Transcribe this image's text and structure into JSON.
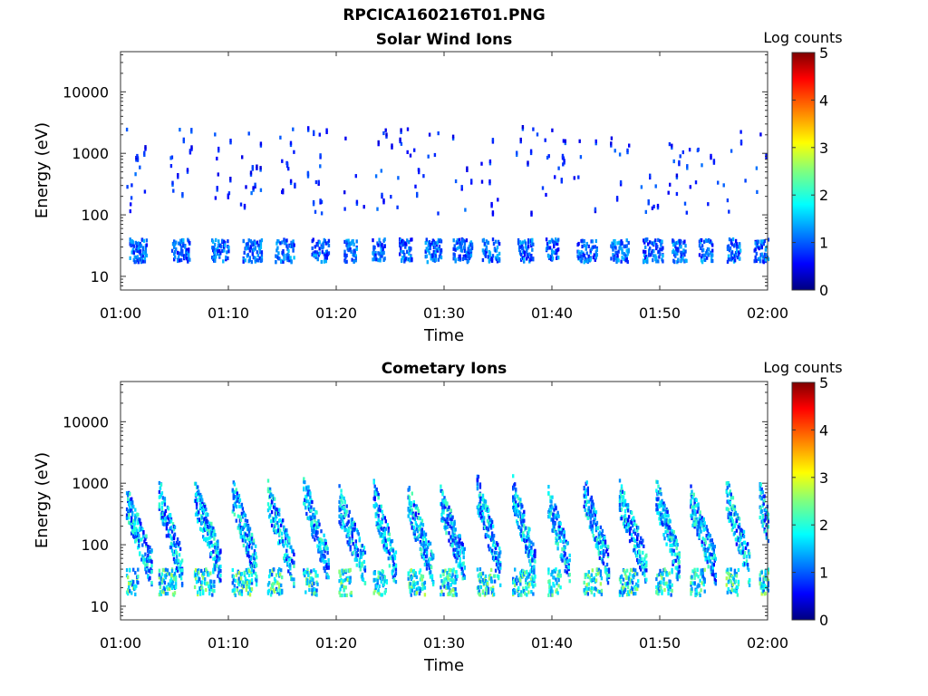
{
  "figure": {
    "title": "RPCICA160216T01.PNG"
  },
  "chart_data": [
    {
      "type": "heatmap",
      "title": "Solar Wind Ions",
      "xlabel": "Time",
      "ylabel": "Energy (eV)",
      "x_ticks": [
        "01:00",
        "01:10",
        "01:20",
        "01:30",
        "01:40",
        "01:50",
        "02:00"
      ],
      "xlim_minutes": [
        0,
        60
      ],
      "y_scale": "log",
      "y_ticks": [
        10,
        100,
        1000,
        10000
      ],
      "y_tick_labels": [
        "10",
        "100",
        "1000",
        "10000"
      ],
      "ylim": [
        6,
        45000
      ],
      "colorbar": {
        "label": "Log counts",
        "range": [
          0,
          5
        ],
        "ticks": [
          "0",
          "1",
          "2",
          "3",
          "4",
          "5"
        ],
        "colormap": "jet"
      },
      "sweep_start_minutes": [
        0.8,
        4.7,
        8.4,
        11.3,
        14.3,
        17.6,
        20.7,
        23.3,
        25.8,
        28.2,
        30.8,
        33.5,
        36.8,
        39.4,
        42.3,
        45.4,
        48.4,
        51.1,
        53.6,
        56.2,
        58.7
      ],
      "features": [
        {
          "label": "low-energy band",
          "energy_min": 17,
          "energy_max": 40,
          "peak_level": 1.6
        },
        {
          "label": "scattered high-energy hits",
          "energy_min": 100,
          "energy_max": 2500,
          "peak_level": 1.2
        }
      ]
    },
    {
      "type": "heatmap",
      "title": "Cometary Ions",
      "xlabel": "Time",
      "ylabel": "Energy (eV)",
      "x_ticks": [
        "01:00",
        "01:10",
        "01:20",
        "01:30",
        "01:40",
        "01:50",
        "02:00"
      ],
      "xlim_minutes": [
        0,
        60
      ],
      "y_scale": "log",
      "y_ticks": [
        10,
        100,
        1000,
        10000
      ],
      "y_tick_labels": [
        "10",
        "100",
        "1000",
        "10000"
      ],
      "ylim": [
        6,
        45000
      ],
      "colorbar": {
        "label": "Log counts",
        "range": [
          0,
          5
        ],
        "ticks": [
          "0",
          "1",
          "2",
          "3",
          "4",
          "5"
        ],
        "colormap": "jet"
      },
      "sweep_start_minutes": [
        0.5,
        3.5,
        6.8,
        10.3,
        13.6,
        16.9,
        20.2,
        23.4,
        26.6,
        29.6,
        33.0,
        36.3,
        39.6,
        42.9,
        46.2,
        49.6,
        52.8,
        56.1,
        59.2
      ],
      "features": [
        {
          "label": "low-energy band",
          "energy_min": 15,
          "energy_max": 40,
          "peak_level": 2.8
        },
        {
          "label": "dispersed arcs",
          "energy_min": 40,
          "energy_max": 800,
          "peak_level": 2.3
        }
      ]
    }
  ]
}
